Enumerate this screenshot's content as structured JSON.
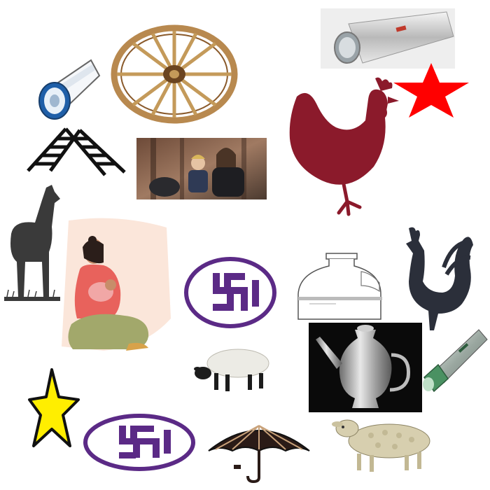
{
  "items": [
    {
      "id": "flashlight-photo",
      "icon": "flashlight-icon"
    },
    {
      "id": "flashlight-blue",
      "icon": "flashlight-icon"
    },
    {
      "id": "wagon-wheel",
      "icon": "wheel-icon"
    },
    {
      "id": "red-star",
      "icon": "star-icon",
      "color": "#ff0000"
    },
    {
      "id": "ladder",
      "icon": "ladder-icon"
    },
    {
      "id": "mother-child-photo",
      "icon": "photo-icon"
    },
    {
      "id": "hen",
      "icon": "hen-icon",
      "color": "#8b1a2b"
    },
    {
      "id": "llama",
      "icon": "llama-icon"
    },
    {
      "id": "breastfeeding-mother",
      "icon": "mother-icon"
    },
    {
      "id": "religious-symbol-1",
      "icon": "religious-symbol-icon",
      "color": "#5b2a86"
    },
    {
      "id": "glass-jar",
      "icon": "jar-icon"
    },
    {
      "id": "rooster",
      "icon": "rooster-icon",
      "color": "#2b2f3a"
    },
    {
      "id": "silver-jug",
      "icon": "jug-icon"
    },
    {
      "id": "flashlight-green",
      "icon": "flashlight-icon"
    },
    {
      "id": "lamb",
      "icon": "lamb-icon"
    },
    {
      "id": "yellow-star",
      "icon": "star-icon",
      "color": "#ffee00"
    },
    {
      "id": "religious-symbol-2",
      "icon": "religious-symbol-icon",
      "color": "#5b2a86"
    },
    {
      "id": "umbrella",
      "icon": "umbrella-icon"
    },
    {
      "id": "sheep",
      "icon": "sheep-icon"
    }
  ]
}
